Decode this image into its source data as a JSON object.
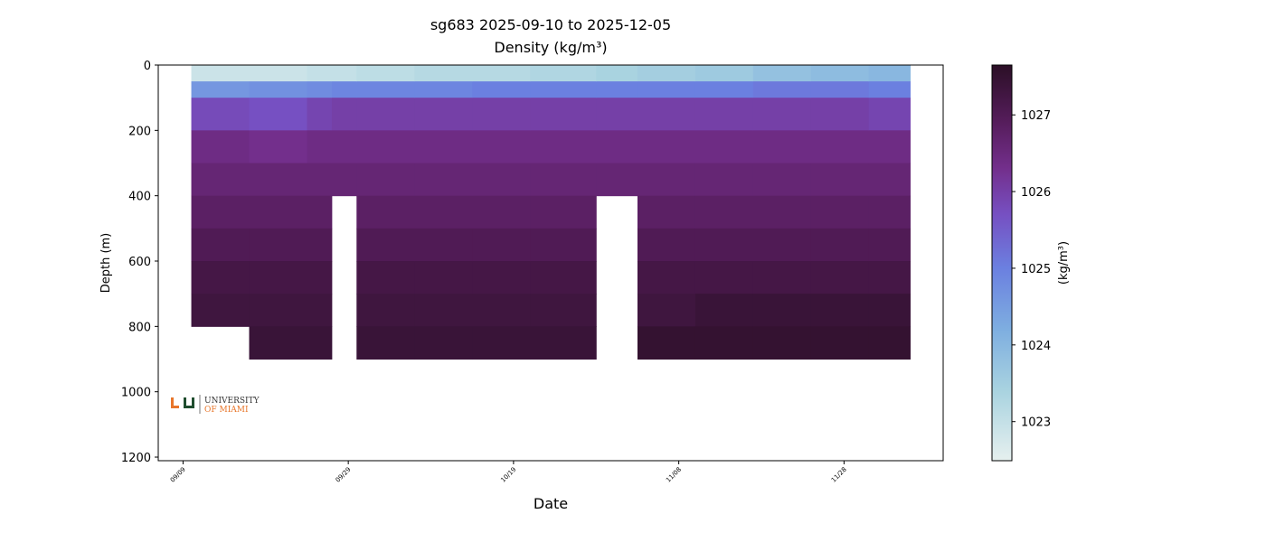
{
  "chart_data": {
    "type": "heatmap",
    "title": "sg683 2025-09-10 to 2025-12-05",
    "subtitle": "Density (kg/m³)",
    "x_label": "Date",
    "y_label": "Depth (m)",
    "colorbar_label": "(kg/m³)",
    "logo": {
      "line1": "UNIVERSITY",
      "line2": "OF MIAMI"
    },
    "x": [
      "2025-09-10",
      "2025-09-17",
      "2025-09-24",
      "2025-09-27",
      "2025-09-30",
      "2025-10-07",
      "2025-10-14",
      "2025-10-21",
      "2025-10-29",
      "2025-11-03",
      "2025-11-10",
      "2025-11-17",
      "2025-11-24",
      "2025-12-01",
      "2025-12-06"
    ],
    "depths": [
      0,
      50,
      100,
      200,
      300,
      400,
      500,
      600,
      700,
      800,
      900
    ],
    "z": [
      [
        1022.9,
        1024.6,
        1025.8,
        1026.4,
        1026.6,
        1026.8,
        1027.0,
        1027.2,
        1027.3,
        null
      ],
      [
        1022.9,
        1024.7,
        1025.7,
        1026.3,
        1026.6,
        1026.8,
        1027.0,
        1027.2,
        1027.3,
        1027.4
      ],
      [
        1023.0,
        1024.8,
        1025.9,
        1026.4,
        1026.6,
        1026.8,
        1027.0,
        1027.2,
        1027.3,
        1027.4
      ],
      [
        1023.0,
        1024.9,
        1026.0,
        1026.4,
        1026.6,
        null,
        null,
        null,
        null,
        null
      ],
      [
        1023.1,
        1024.9,
        1026.0,
        1026.4,
        1026.6,
        1026.8,
        1027.0,
        1027.2,
        1027.3,
        1027.4
      ],
      [
        1023.2,
        1024.9,
        1026.0,
        1026.4,
        1026.6,
        1026.8,
        1027.0,
        1027.2,
        1027.3,
        1027.4
      ],
      [
        1023.2,
        1025.0,
        1026.0,
        1026.4,
        1026.6,
        1026.8,
        1027.0,
        1027.2,
        1027.3,
        1027.4
      ],
      [
        1023.3,
        1025.0,
        1026.0,
        1026.4,
        1026.6,
        1026.8,
        1027.0,
        1027.2,
        1027.3,
        1027.4
      ],
      [
        1023.4,
        1025.0,
        1026.0,
        1026.4,
        1026.6,
        null,
        null,
        null,
        null,
        null
      ],
      [
        1023.5,
        1025.0,
        1026.0,
        1026.4,
        1026.6,
        1026.8,
        1027.0,
        1027.2,
        1027.3,
        1027.5
      ],
      [
        1023.6,
        1025.0,
        1026.0,
        1026.4,
        1026.6,
        1026.8,
        1027.0,
        1027.2,
        1027.4,
        1027.5
      ],
      [
        1023.8,
        1025.1,
        1026.0,
        1026.4,
        1026.6,
        1026.8,
        1027.0,
        1027.2,
        1027.4,
        1027.5
      ],
      [
        1023.9,
        1025.1,
        1026.0,
        1026.4,
        1026.6,
        1026.8,
        1027.0,
        1027.2,
        1027.4,
        1027.5
      ],
      [
        1024.0,
        1025.0,
        1025.9,
        1026.4,
        1026.6,
        1026.8,
        1027.0,
        1027.2,
        1027.4,
        1027.5
      ]
    ],
    "xlim": [
      "2025-09-06",
      "2025-12-10"
    ],
    "xticks": [
      {
        "value": "2025-09-09",
        "label": "09/09"
      },
      {
        "value": "2025-09-29",
        "label": "09/29"
      },
      {
        "value": "2025-10-19",
        "label": "10/19"
      },
      {
        "value": "2025-11-08",
        "label": "11/08"
      },
      {
        "value": "2025-11-28",
        "label": "11/28"
      }
    ],
    "ylim": [
      0,
      1211
    ],
    "yticks": [
      0,
      200,
      400,
      600,
      800,
      1000,
      1200
    ],
    "clim": [
      1022.49,
      1027.65
    ],
    "cticks": [
      1023,
      1024,
      1025,
      1026,
      1027
    ],
    "colormap": [
      [
        1022.49,
        "#e6f0ef"
      ],
      [
        1023.4,
        "#a9d3e0"
      ],
      [
        1024.2,
        "#7eaee0"
      ],
      [
        1025.0,
        "#6b80e0"
      ],
      [
        1025.7,
        "#7650c2"
      ],
      [
        1026.3,
        "#732f8c"
      ],
      [
        1026.9,
        "#561d5c"
      ],
      [
        1027.65,
        "#2b0f26"
      ]
    ]
  }
}
